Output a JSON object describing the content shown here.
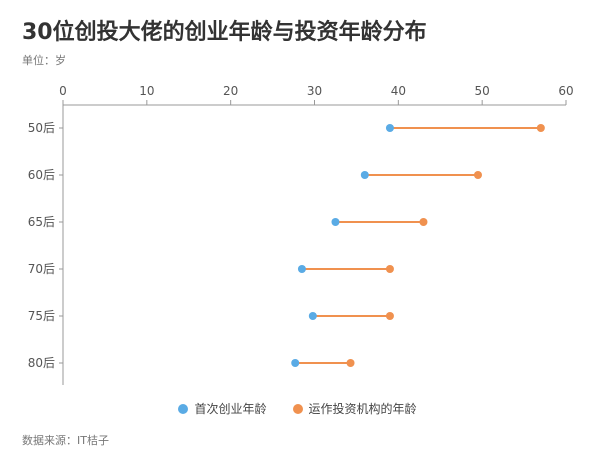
{
  "title": "30位创投大佬的创业年龄与投资年龄分布",
  "unit": "单位：岁",
  "source": "数据来源：IT桔子",
  "colors": {
    "first": "#5aabe5",
    "invest": "#f0914f",
    "axis": "#999999",
    "grid": "#dddddd"
  },
  "chart_data": {
    "type": "dumbbell",
    "categories": [
      "50后",
      "60后",
      "65后",
      "70后",
      "75后",
      "80后"
    ],
    "xlim": [
      0,
      60
    ],
    "xticks": [
      0,
      10,
      20,
      30,
      40,
      50,
      60
    ],
    "series": [
      {
        "name": "首次创业年龄",
        "values": [
          39,
          36,
          32.5,
          28.5,
          29.8,
          27.7
        ]
      },
      {
        "name": "运作投资机构的年龄",
        "values": [
          57,
          49.5,
          43,
          39,
          39,
          34.3
        ]
      }
    ],
    "legend_position": "bottom",
    "grid": false
  }
}
